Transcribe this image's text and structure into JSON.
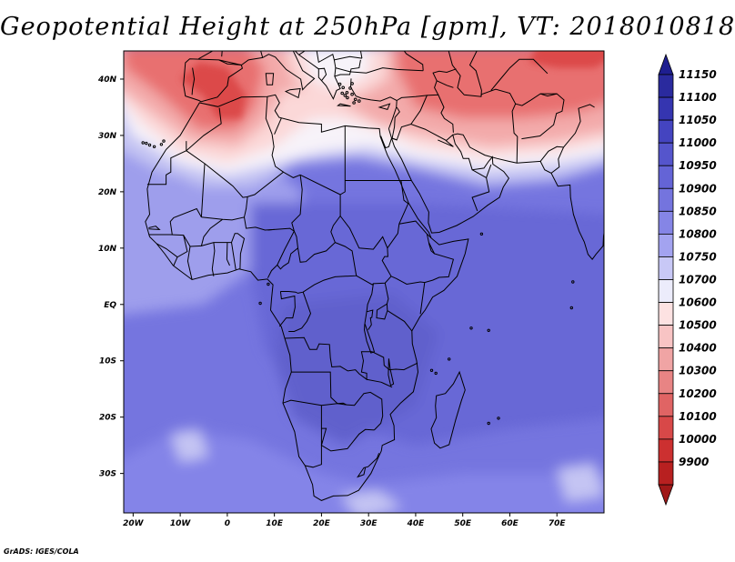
{
  "title": "Geopotential Height at 250hPa [gpm], VT: 2018010818",
  "credit": "GrADS: IGES/COLA",
  "map": {
    "lon_range": [
      -22,
      80
    ],
    "lat_range": [
      -37,
      45
    ],
    "lon_ticks": [
      {
        "value": -20,
        "label": "20W"
      },
      {
        "value": -10,
        "label": "10W"
      },
      {
        "value": 0,
        "label": "0"
      },
      {
        "value": 10,
        "label": "10E"
      },
      {
        "value": 20,
        "label": "20E"
      },
      {
        "value": 30,
        "label": "30E"
      },
      {
        "value": 40,
        "label": "40E"
      },
      {
        "value": 50,
        "label": "50E"
      },
      {
        "value": 60,
        "label": "60E"
      },
      {
        "value": 70,
        "label": "70E"
      }
    ],
    "lat_ticks": [
      {
        "value": 40,
        "label": "40N"
      },
      {
        "value": 30,
        "label": "30N"
      },
      {
        "value": 20,
        "label": "20N"
      },
      {
        "value": 10,
        "label": "10N"
      },
      {
        "value": 0,
        "label": "EQ"
      },
      {
        "value": -10,
        "label": "10S"
      },
      {
        "value": -20,
        "label": "20S"
      },
      {
        "value": -30,
        "label": "30S"
      }
    ]
  },
  "colorbar": {
    "levels": [
      "11150",
      "11100",
      "11050",
      "11000",
      "10950",
      "10900",
      "10850",
      "10800",
      "10750",
      "10700",
      "10600",
      "10500",
      "10400",
      "10300",
      "10200",
      "10100",
      "10000",
      "9900"
    ],
    "colors": [
      "#2a2a9e",
      "#3535b0",
      "#4444c0",
      "#5555cc",
      "#6464d6",
      "#7474de",
      "#8585e6",
      "#a3a3f0",
      "#c8c8f6",
      "#ececfb",
      "#fde2e2",
      "#f8c4c4",
      "#f0a4a4",
      "#e88484",
      "#e06464",
      "#d84848",
      "#cc3030",
      "#b82020"
    ],
    "top_arrow_color": "#1e1e90",
    "bottom_arrow_color": "#a01818"
  },
  "field_colors": {
    "deep_red": "#dc4848",
    "red": "#e87070",
    "light_red": "#f3aaaa",
    "pale_red": "#fbd8d8",
    "white": "#f7f3f9",
    "pale_blue": "#c4c4f3",
    "light_blue": "#9e9eec",
    "blue": "#8484e8",
    "mid_blue": "#7575df",
    "dark_blue": "#6868d6",
    "deeper_blue": "#6060cc"
  }
}
